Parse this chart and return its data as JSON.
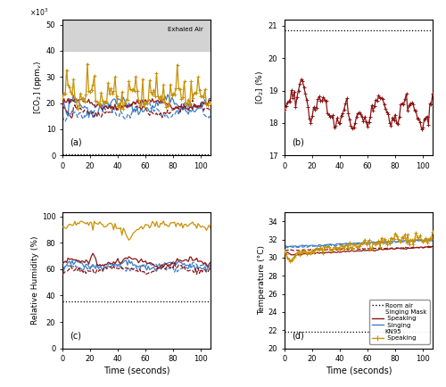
{
  "room_co2": 400,
  "exhaled_co2_low": 40000,
  "exhaled_co2_high": 52000,
  "room_o2": 20.85,
  "room_rh": 35.5,
  "room_temp": 21.85,
  "panel_labels": [
    "(a)",
    "(b)",
    "(c)",
    "(d)"
  ],
  "colors": {
    "red_solid": "#8B1515",
    "blue_solid": "#3A7EC8",
    "gold": "#C8920A",
    "black_dotted": "#000000",
    "gray_band": "#CCCCCC"
  },
  "exhaled_label": "Exhaled Air",
  "co2_ylim": [
    0,
    52000
  ],
  "co2_yticks": [
    0,
    10000,
    20000,
    30000,
    40000,
    50000
  ],
  "co2_yticklabels": [
    "0",
    "10",
    "20",
    "30",
    "40",
    "50"
  ],
  "o2_ylim": [
    17,
    21.2
  ],
  "o2_yticks": [
    17,
    18,
    19,
    20,
    21
  ],
  "rh_ylim": [
    0,
    103
  ],
  "rh_yticks": [
    0,
    20,
    40,
    60,
    80,
    100
  ],
  "temp_ylim": [
    20,
    35
  ],
  "temp_yticks": [
    20,
    22,
    24,
    26,
    28,
    30,
    32,
    34
  ],
  "xlim": [
    0,
    107
  ],
  "xticks": [
    0,
    20,
    40,
    60,
    80,
    100
  ]
}
